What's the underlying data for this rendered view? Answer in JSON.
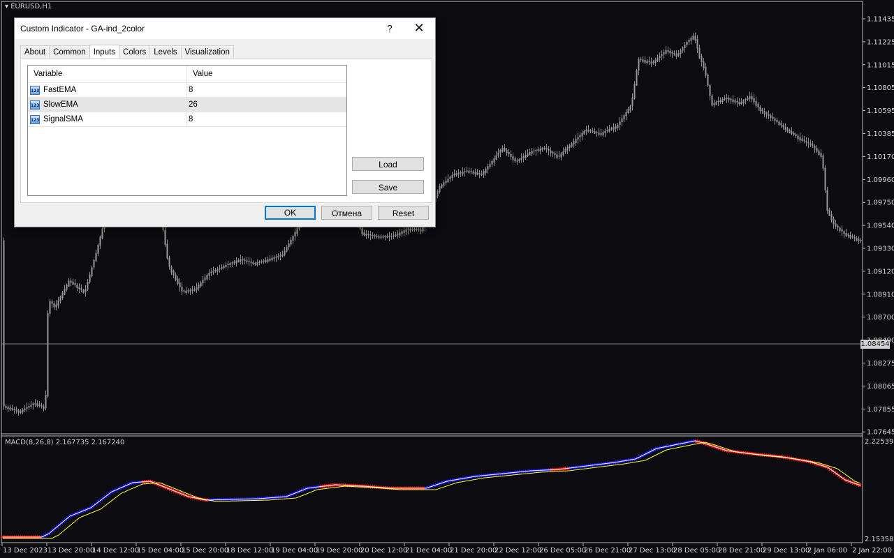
{
  "window": {
    "symbol": "EURUSD,H1"
  },
  "price_axis": {
    "labels": [
      "1.11435",
      "1.11225",
      "1.11015",
      "1.10805",
      "1.10595",
      "1.10385",
      "1.10170",
      "1.09960",
      "1.09750",
      "1.09540",
      "1.09330",
      "1.09120",
      "1.08910",
      "1.08700",
      "1.08490",
      "1.08275",
      "1.08065",
      "1.07855",
      "1.07645"
    ],
    "current_price": "1.08454"
  },
  "macd_axis": {
    "top": "2.225397",
    "bottom": "2.153587"
  },
  "time_axis": {
    "labels": [
      "13 Dec 2023",
      "13 Dec 20:00",
      "14 Dec 12:00",
      "15 Dec 04:00",
      "15 Dec 20:00",
      "18 Dec 12:00",
      "19 Dec 04:00",
      "19 Dec 20:00",
      "20 Dec 12:00",
      "21 Dec 04:00",
      "21 Dec 20:00",
      "22 Dec 12:00",
      "26 Dec 05:00",
      "26 Dec 21:00",
      "27 Dec 13:00",
      "28 Dec 05:00",
      "28 Dec 21:00",
      "29 Dec 13:00",
      "2 Jan 06:00",
      "2 Jan 22:00"
    ]
  },
  "indicator_label": "MACD(8,26,8) 2.167735 2.167240",
  "colors": {
    "background": "#0b0b10",
    "candle": "#8c8c8c",
    "macd_up": "#1a1aff",
    "macd_down": "#ff1a1a",
    "signal": "#ffff33"
  },
  "dialog": {
    "title": "Custom Indicator - GA-ind_2color",
    "help": "?",
    "close": "✕",
    "tabs": [
      {
        "label": "About"
      },
      {
        "label": "Common"
      },
      {
        "label": "Inputs"
      },
      {
        "label": "Colors"
      },
      {
        "label": "Levels"
      },
      {
        "label": "Visualization"
      }
    ],
    "active_tab": "Inputs",
    "table": {
      "headers": {
        "variable": "Variable",
        "value": "Value"
      },
      "rows": [
        {
          "name": "FastEMA",
          "value": "8",
          "icon": "123"
        },
        {
          "name": "SlowEMA",
          "value": "26",
          "icon": "123"
        },
        {
          "name": "SignalSMA",
          "value": "8",
          "icon": "123"
        }
      ]
    },
    "buttons": {
      "load": "Load",
      "save": "Save",
      "ok": "OK",
      "cancel": "Отмена",
      "reset": "Reset"
    }
  }
}
